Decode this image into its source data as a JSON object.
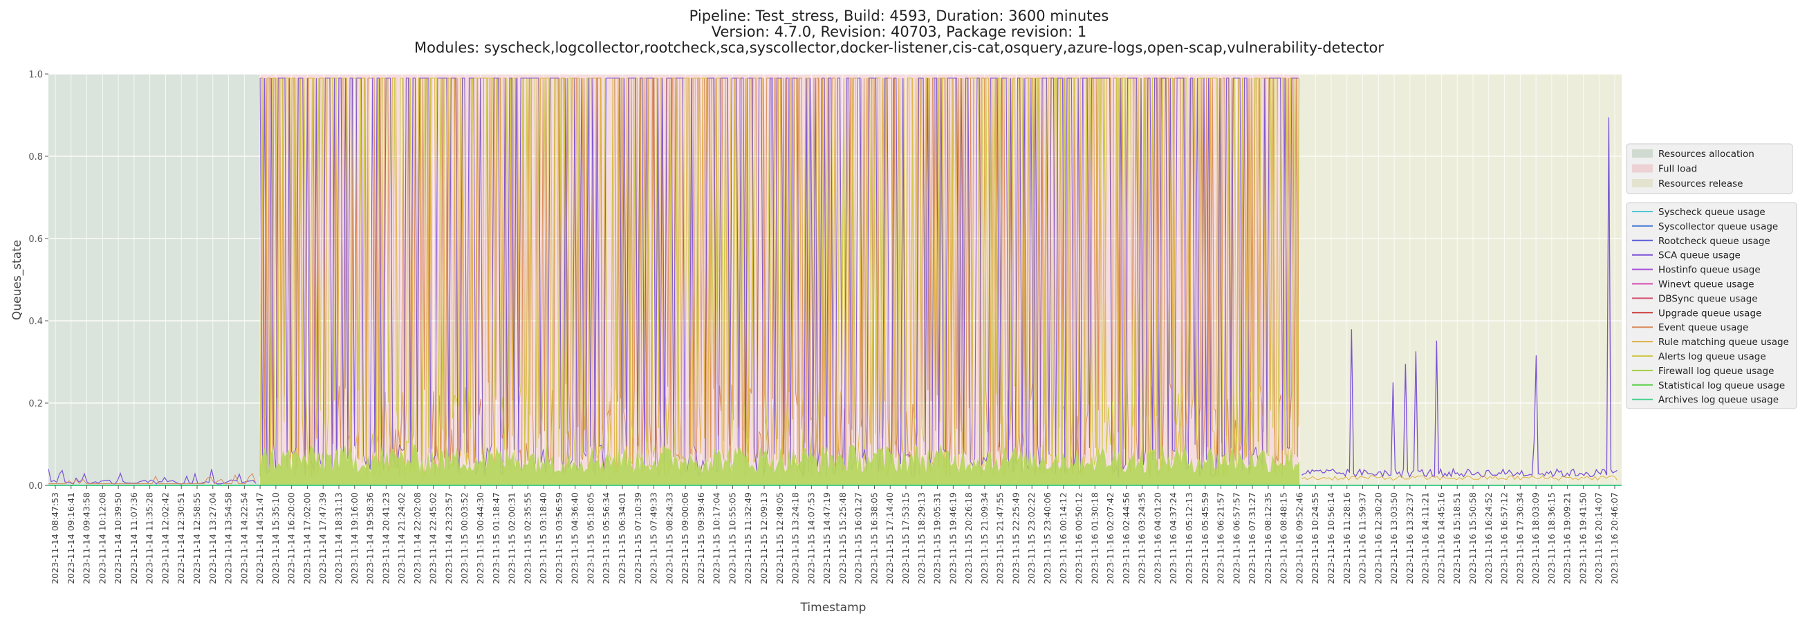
{
  "chart_data": {
    "type": "line",
    "title_lines": [
      "Pipeline: Test_stress, Build: 4593, Duration: 3600 minutes",
      "Version: 4.7.0, Revision: 40703, Package revision: 1",
      "Modules: syscheck,logcollector,rootcheck,sca,syscollector,docker-listener,cis-cat,osquery,azure-logs,open-scap,vulnerability-detector"
    ],
    "xlabel": "Timestamp",
    "ylabel": "Queues_state",
    "ylim": [
      0.0,
      1.0
    ],
    "yticks": [
      0.0,
      0.2,
      0.4,
      0.6,
      0.8,
      1.0
    ],
    "ytick_labels": [
      "0.0",
      "0.2",
      "0.4",
      "0.6",
      "0.8",
      "1.0"
    ],
    "grid": true,
    "legend_position": "right",
    "x_tick_labels": [
      "2023-11-14 08:47:53",
      "2023-11-14 09:16:41",
      "2023-11-14 09:43:58",
      "2023-11-14 10:12:08",
      "2023-11-14 10:39:50",
      "2023-11-14 11:07:36",
      "2023-11-14 11:35:28",
      "2023-11-14 12:02:42",
      "2023-11-14 12:30:51",
      "2023-11-14 12:58:55",
      "2023-11-14 13:27:04",
      "2023-11-14 13:54:58",
      "2023-11-14 14:22:54",
      "2023-11-14 14:51:47",
      "2023-11-14 15:35:10",
      "2023-11-14 16:20:00",
      "2023-11-14 17:02:00",
      "2023-11-14 17:47:39",
      "2023-11-14 18:31:13",
      "2023-11-14 19:16:00",
      "2023-11-14 19:58:36",
      "2023-11-14 20:41:23",
      "2023-11-14 21:24:02",
      "2023-11-14 22:02:08",
      "2023-11-14 22:45:02",
      "2023-11-14 23:23:57",
      "2023-11-15 00:03:52",
      "2023-11-15 00:44:30",
      "2023-11-15 01:18:47",
      "2023-11-15 02:00:31",
      "2023-11-15 02:35:55",
      "2023-11-15 03:18:40",
      "2023-11-15 03:56:59",
      "2023-11-15 04:36:40",
      "2023-11-15 05:18:05",
      "2023-11-15 05:56:34",
      "2023-11-15 06:34:01",
      "2023-11-15 07:10:39",
      "2023-11-15 07:49:33",
      "2023-11-15 08:24:33",
      "2023-11-15 09:00:06",
      "2023-11-15 09:39:46",
      "2023-11-15 10:17:04",
      "2023-11-15 10:55:05",
      "2023-11-15 11:32:49",
      "2023-11-15 12:09:13",
      "2023-11-15 12:49:05",
      "2023-11-15 13:24:18",
      "2023-11-15 14:07:53",
      "2023-11-15 14:47:19",
      "2023-11-15 15:25:48",
      "2023-11-15 16:01:27",
      "2023-11-15 16:38:05",
      "2023-11-15 17:14:40",
      "2023-11-15 17:53:15",
      "2023-11-15 18:29:13",
      "2023-11-15 19:05:31",
      "2023-11-15 19:46:19",
      "2023-11-15 20:26:18",
      "2023-11-15 21:09:34",
      "2023-11-15 21:47:55",
      "2023-11-15 22:25:49",
      "2023-11-15 23:02:22",
      "2023-11-15 23:40:06",
      "2023-11-16 00:14:12",
      "2023-11-16 00:50:12",
      "2023-11-16 01:30:18",
      "2023-11-16 02:07:42",
      "2023-11-16 02:44:56",
      "2023-11-16 03:24:35",
      "2023-11-16 04:01:20",
      "2023-11-16 04:37:24",
      "2023-11-16 05:12:13",
      "2023-11-16 05:45:59",
      "2023-11-16 06:21:57",
      "2023-11-16 06:57:57",
      "2023-11-16 07:31:27",
      "2023-11-16 08:12:35",
      "2023-11-16 08:48:15",
      "2023-11-16 09:52:46",
      "2023-11-16 10:24:55",
      "2023-11-16 10:56:14",
      "2023-11-16 11:28:16",
      "2023-11-16 11:59:37",
      "2023-11-16 12:30:20",
      "2023-11-16 13:03:50",
      "2023-11-16 13:32:37",
      "2023-11-16 14:11:21",
      "2023-11-16 14:45:16",
      "2023-11-16 15:18:51",
      "2023-11-16 15:50:58",
      "2023-11-16 16:24:52",
      "2023-11-16 16:57:12",
      "2023-11-16 17:30:34",
      "2023-11-16 18:03:09",
      "2023-11-16 18:36:15",
      "2023-11-16 19:09:21",
      "2023-11-16 19:41:50",
      "2023-11-16 20:14:07",
      "2023-11-16 20:46:07"
    ],
    "phases": [
      {
        "name": "Resources allocation",
        "start_tick": 0,
        "end_tick": 13,
        "color": "#b0c4b1"
      },
      {
        "name": "Full load",
        "start_tick": 13,
        "end_tick": 79,
        "color": "#e8b4b8"
      },
      {
        "name": "Resources release",
        "start_tick": 79,
        "end_tick": 98,
        "color": "#d6d6b0"
      }
    ],
    "series": [
      {
        "name": "Syscheck queue usage",
        "color": "#4fc7d6"
      },
      {
        "name": "Syscollector queue usage",
        "color": "#4f7fd6"
      },
      {
        "name": "Rootcheck queue usage",
        "color": "#5a5ad6"
      },
      {
        "name": "SCA queue usage",
        "color": "#7b52d6"
      },
      {
        "name": "Hostinfo queue usage",
        "color": "#a64fd6"
      },
      {
        "name": "Winevt queue usage",
        "color": "#d64fb0"
      },
      {
        "name": "DBSync queue usage",
        "color": "#d64f72"
      },
      {
        "name": "Upgrade queue usage",
        "color": "#cc3a3a"
      },
      {
        "name": "Event queue usage",
        "color": "#d98a5a"
      },
      {
        "name": "Rule matching queue usage",
        "color": "#e0b044"
      },
      {
        "name": "Alerts log queue usage",
        "color": "#cfc94a"
      },
      {
        "name": "Firewall log queue usage",
        "color": "#a6cf4a"
      },
      {
        "name": "Statistical log queue usage",
        "color": "#5ccf4a"
      },
      {
        "name": "Archives log queue usage",
        "color": "#4acf8f"
      }
    ]
  }
}
